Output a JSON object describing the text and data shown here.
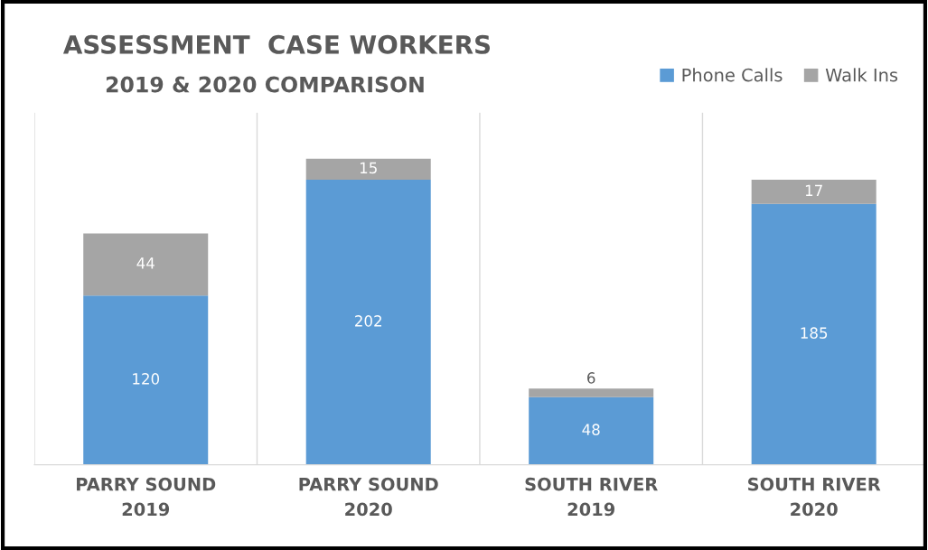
{
  "chart_data": {
    "type": "bar",
    "title": "ASSESSMENT  CASE WORKERS",
    "subtitle": "2019 & 2020 COMPARISON",
    "categories": [
      "PARRY SOUND\n2019",
      "PARRY SOUND\n2020",
      "SOUTH RIVER\n2019",
      "SOUTH RIVER\n2020"
    ],
    "series": [
      {
        "name": "Phone Calls",
        "color": "#5b9bd5",
        "values": [
          120,
          202,
          48,
          185
        ]
      },
      {
        "name": "Walk Ins",
        "color": "#a5a5a5",
        "values": [
          44,
          15,
          6,
          17
        ]
      }
    ],
    "stacked": true,
    "data_labels": true,
    "grid": "x",
    "legend": "top right"
  }
}
